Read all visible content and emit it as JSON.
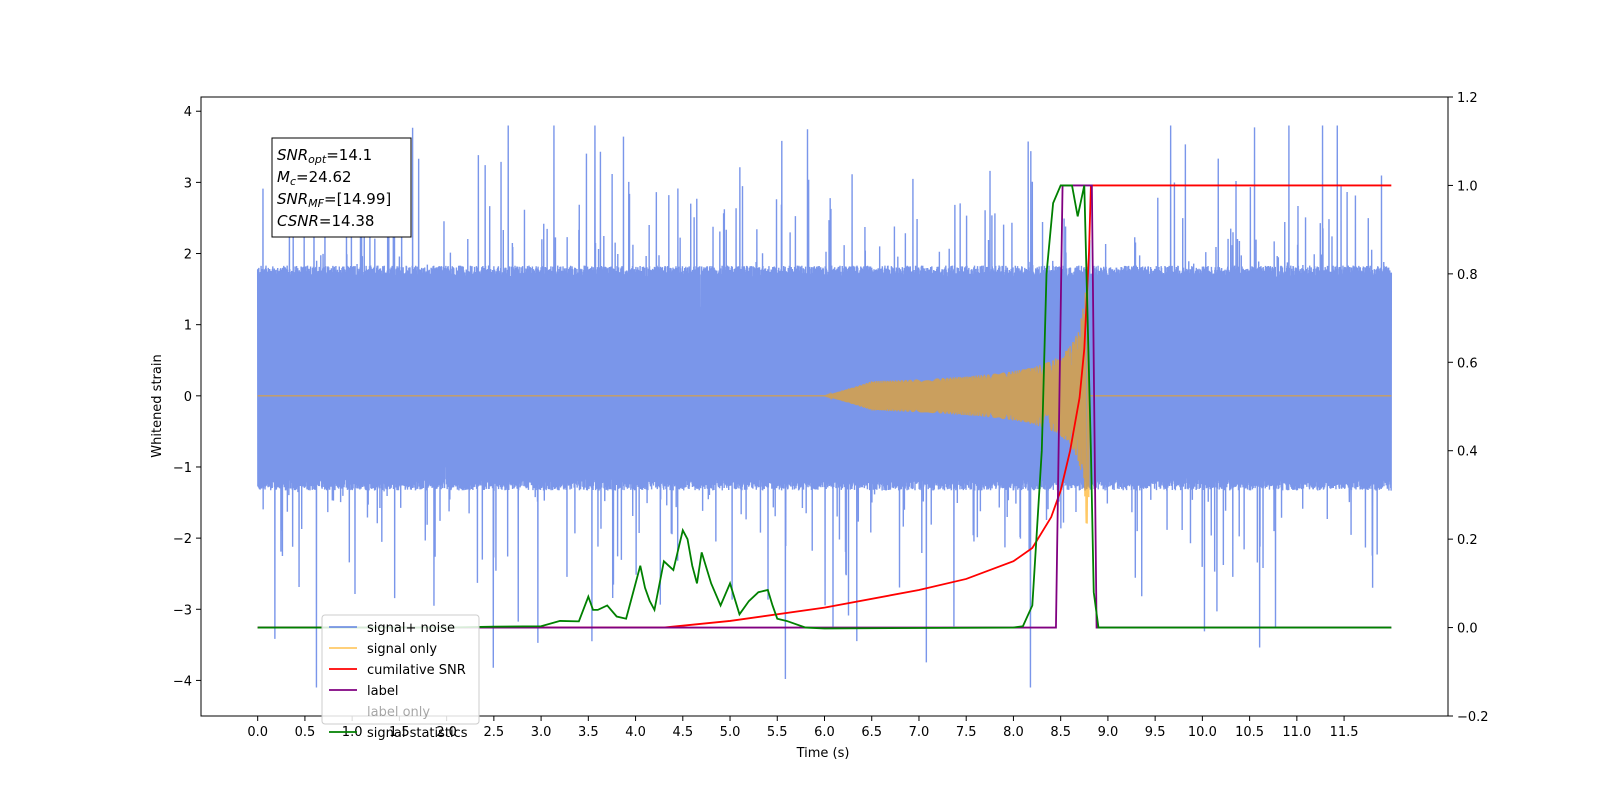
{
  "chart_data": {
    "type": "line",
    "title": "",
    "xlabel": "Time (s)",
    "ylabel": "Whitened strain",
    "xlim": [
      -0.6,
      12.6
    ],
    "ylim": [
      -4.5,
      4.2
    ],
    "y2lim": [
      -0.2,
      1.2
    ],
    "grid": false,
    "legend_position": "lower-left",
    "x_ticks": [
      "0.0",
      "0.5",
      "1.0",
      "1.5",
      "2.0",
      "2.5",
      "3.0",
      "3.5",
      "4.0",
      "4.5",
      "5.0",
      "5.5",
      "6.0",
      "6.5",
      "7.0",
      "7.5",
      "8.0",
      "8.5",
      "9.0",
      "9.5",
      "10.0",
      "10.5",
      "11.0",
      "11.5"
    ],
    "y_ticks": [
      "4",
      "3",
      "2",
      "1",
      "0",
      "−1",
      "−2",
      "−3",
      "−4"
    ],
    "y2_ticks": [
      "1.2",
      "1.0",
      "0.8",
      "0.6",
      "0.4",
      "0.2",
      "0.0",
      "−0.2"
    ],
    "annotation": {
      "lines": [
        {
          "pre": "SNR",
          "sub": "opt",
          "post": "=14.1"
        },
        {
          "pre": "M",
          "sub": "c",
          "post": "=24.62"
        },
        {
          "pre": "SNR",
          "sub": "MF",
          "post": "=[14.99]"
        },
        {
          "pre": "CSNR",
          "sub": "",
          "post": "=14.38"
        }
      ]
    },
    "series": [
      {
        "name": "signal+ noise",
        "axis": "left",
        "color": "#4169e1",
        "opacity": 0.7,
        "description_values": {
          "x_start": 0.0,
          "x_end": 12.0,
          "core_band": [
            -1.3,
            1.8
          ],
          "peak_max": 3.8,
          "peak_min": -4.1
        }
      },
      {
        "name": "signal only",
        "axis": "left",
        "color": "#ffa500",
        "opacity": 0.6,
        "description_values": {
          "chirp_start": 6.0,
          "merger_time": 8.8,
          "peak_amplitude": 1.8
        }
      },
      {
        "name": "cumilative SNR",
        "axis": "right",
        "color": "#ff0000",
        "x": [
          0.0,
          4.3,
          5.0,
          6.0,
          7.0,
          7.5,
          8.0,
          8.2,
          8.4,
          8.5,
          8.6,
          8.7,
          8.75,
          8.8,
          8.82,
          12.0
        ],
        "y": [
          0.0,
          0.0,
          0.015,
          0.045,
          0.085,
          0.11,
          0.15,
          0.18,
          0.25,
          0.31,
          0.4,
          0.52,
          0.63,
          0.85,
          1.0,
          1.0
        ]
      },
      {
        "name": "label",
        "axis": "right",
        "color": "#800080",
        "x": [
          0.0,
          8.45,
          8.52,
          8.83,
          8.88,
          12.0
        ],
        "y": [
          0.0,
          0.0,
          1.0,
          1.0,
          0.0,
          0.0
        ]
      },
      {
        "name": "label only",
        "axis": "right",
        "color": "#ffffff",
        "hidden": true,
        "x": [],
        "y": []
      },
      {
        "name": "signal statistics",
        "axis": "right",
        "color": "#008000",
        "x": [
          0.0,
          2.0,
          2.5,
          3.0,
          3.2,
          3.4,
          3.5,
          3.55,
          3.6,
          3.7,
          3.8,
          3.9,
          4.0,
          4.05,
          4.1,
          4.15,
          4.2,
          4.3,
          4.35,
          4.4,
          4.5,
          4.55,
          4.6,
          4.65,
          4.7,
          4.8,
          4.9,
          5.0,
          5.1,
          5.2,
          5.3,
          5.4,
          5.45,
          5.5,
          5.6,
          5.8,
          6.0,
          8.0,
          8.1,
          8.2,
          8.3,
          8.35,
          8.42,
          8.5,
          8.55,
          8.62,
          8.68,
          8.75,
          8.82,
          8.85,
          8.9,
          12.0
        ],
        "y": [
          0.0,
          0.0,
          0.002,
          0.003,
          0.015,
          0.014,
          0.07,
          0.04,
          0.04,
          0.05,
          0.025,
          0.02,
          0.1,
          0.14,
          0.09,
          0.06,
          0.04,
          0.15,
          0.14,
          0.13,
          0.22,
          0.2,
          0.14,
          0.1,
          0.17,
          0.1,
          0.05,
          0.1,
          0.03,
          0.06,
          0.08,
          0.085,
          0.05,
          0.02,
          0.015,
          0.0,
          -0.002,
          0.0,
          0.003,
          0.05,
          0.4,
          0.8,
          0.96,
          1.0,
          1.0,
          1.0,
          0.93,
          1.0,
          0.4,
          0.08,
          0.0,
          0.0
        ]
      }
    ]
  }
}
